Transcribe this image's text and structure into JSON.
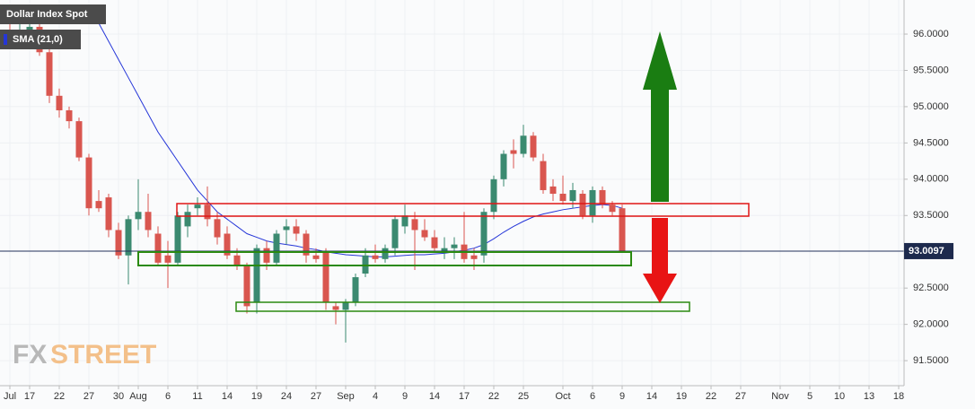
{
  "chart_data": {
    "type": "candlestick",
    "categories": [
      "Jul",
      null,
      "17",
      null,
      null,
      "22",
      null,
      null,
      "27",
      null,
      null,
      "30",
      null,
      "Aug",
      null,
      null,
      "6",
      null,
      null,
      "11",
      null,
      null,
      "14",
      null,
      null,
      "19",
      null,
      null,
      "24",
      null,
      null,
      "27",
      null,
      null,
      "Sep",
      null,
      null,
      "4",
      null,
      null,
      "9",
      null,
      null,
      "14",
      null,
      null,
      "17",
      null,
      null,
      "22",
      null,
      null,
      "25",
      null,
      null,
      null,
      "Oct",
      null,
      null,
      "6",
      null,
      null,
      "9",
      null,
      null,
      "14",
      null,
      null,
      "19",
      null,
      null,
      "22",
      null,
      null,
      "27",
      null,
      null,
      null,
      "Nov",
      null,
      null,
      "5",
      null,
      null,
      "10",
      null,
      null,
      "13",
      null,
      null,
      "18"
    ],
    "series": [
      {
        "name": "Dollar Index Spot",
        "type": "candlestick",
        "up_color": "#3b8a70",
        "down_color": "#d9564f",
        "open": [
          96.0,
          95.9,
          96.05,
          96.1,
          95.75,
          95.15,
          94.95,
          94.8,
          94.3,
          93.7,
          93.75,
          93.3,
          92.95,
          93.45,
          93.55,
          93.25,
          92.95,
          92.85,
          93.35,
          93.6,
          93.65,
          93.45,
          93.25,
          92.95,
          92.8,
          92.3,
          93.05,
          92.85,
          93.3,
          93.35,
          93.25,
          92.95,
          93.0,
          92.25,
          92.2,
          92.3,
          92.7,
          92.95,
          92.9,
          93.05,
          93.35,
          93.45,
          93.3,
          93.2,
          93.0,
          93.05,
          93.1,
          92.95,
          92.95,
          93.55,
          94.0,
          94.4,
          94.35,
          94.6,
          94.25,
          93.9,
          93.8,
          93.7,
          93.8,
          93.5,
          93.85,
          93.65,
          93.6,
          null,
          null,
          null,
          null,
          null,
          null,
          null,
          null,
          null,
          null,
          null,
          null,
          null,
          null,
          null,
          null,
          null,
          null,
          null,
          null,
          null,
          null,
          null,
          null,
          null,
          null,
          null,
          null
        ],
        "high": [
          96.3,
          96.2,
          96.4,
          96.15,
          95.85,
          95.25,
          95.0,
          94.85,
          94.35,
          93.85,
          93.8,
          93.4,
          93.5,
          94.0,
          93.8,
          93.35,
          93.15,
          93.55,
          93.65,
          93.75,
          93.9,
          93.55,
          93.35,
          93.05,
          92.85,
          93.1,
          93.15,
          93.3,
          93.45,
          93.45,
          93.3,
          93.05,
          93.05,
          92.3,
          92.35,
          92.7,
          93.05,
          93.1,
          93.1,
          93.5,
          93.65,
          93.55,
          93.45,
          93.3,
          93.2,
          93.2,
          93.55,
          93.05,
          93.6,
          94.05,
          94.4,
          94.55,
          94.75,
          94.65,
          94.35,
          94.0,
          94.05,
          93.95,
          93.85,
          93.9,
          93.9,
          93.7,
          93.65,
          null,
          null,
          null,
          null,
          null,
          null,
          null,
          null,
          null,
          null,
          null,
          null,
          null,
          null,
          null,
          null,
          null,
          null,
          null,
          null,
          null,
          null,
          null,
          null,
          null,
          null,
          null,
          null
        ],
        "low": [
          95.8,
          95.85,
          95.9,
          95.7,
          95.05,
          94.85,
          94.7,
          94.25,
          93.5,
          93.55,
          93.2,
          92.9,
          92.55,
          93.3,
          93.2,
          92.8,
          92.5,
          92.8,
          93.2,
          93.5,
          93.35,
          93.1,
          92.9,
          92.75,
          92.15,
          92.15,
          92.75,
          92.8,
          93.1,
          93.15,
          92.85,
          92.85,
          92.2,
          92.0,
          91.75,
          92.25,
          92.65,
          92.85,
          92.85,
          92.95,
          93.25,
          92.75,
          93.15,
          93.0,
          92.9,
          92.9,
          92.85,
          92.75,
          92.85,
          93.45,
          93.9,
          94.15,
          94.3,
          94.25,
          93.8,
          93.7,
          93.65,
          93.6,
          93.45,
          93.4,
          93.6,
          93.5,
          93.0,
          null,
          null,
          null,
          null,
          null,
          null,
          null,
          null,
          null,
          null,
          null,
          null,
          null,
          null,
          null,
          null,
          null,
          null,
          null,
          null,
          null,
          null,
          null,
          null,
          null,
          null,
          null,
          null
        ],
        "close": [
          95.9,
          96.05,
          96.1,
          95.75,
          95.15,
          94.95,
          94.8,
          94.3,
          93.6,
          93.6,
          93.3,
          92.95,
          93.45,
          93.55,
          93.3,
          92.85,
          92.85,
          93.5,
          93.55,
          93.65,
          93.45,
          93.2,
          92.95,
          92.8,
          92.25,
          93.05,
          92.85,
          93.25,
          93.35,
          93.25,
          92.95,
          92.9,
          92.3,
          92.2,
          92.3,
          92.65,
          92.95,
          92.9,
          93.05,
          93.45,
          93.5,
          93.3,
          93.2,
          93.05,
          93.05,
          93.1,
          92.9,
          92.9,
          93.55,
          94.0,
          94.35,
          94.35,
          94.6,
          94.3,
          93.85,
          93.8,
          93.7,
          93.85,
          93.5,
          93.85,
          93.65,
          93.55,
          93.0097,
          null,
          null,
          null,
          null,
          null,
          null,
          null,
          null,
          null,
          null,
          null,
          null,
          null,
          null,
          null,
          null,
          null,
          null,
          null,
          null,
          null,
          null,
          null,
          null,
          null,
          null,
          null,
          null
        ]
      },
      {
        "name": "SMA (21,0)",
        "type": "line",
        "color": "#2536d8",
        "values": [
          null,
          null,
          null,
          null,
          null,
          null,
          null,
          null,
          96.4,
          96.15,
          95.9,
          95.65,
          95.4,
          95.15,
          94.9,
          94.65,
          94.45,
          94.25,
          94.05,
          93.85,
          93.7,
          93.55,
          93.45,
          93.35,
          93.25,
          93.2,
          93.15,
          93.12,
          93.1,
          93.08,
          93.05,
          93.03,
          93.0,
          92.98,
          92.96,
          92.95,
          92.94,
          92.93,
          92.93,
          92.94,
          92.95,
          92.96,
          92.96,
          92.97,
          92.98,
          93.0,
          93.02,
          93.05,
          93.1,
          93.18,
          93.27,
          93.35,
          93.42,
          93.48,
          93.52,
          93.55,
          93.58,
          93.6,
          93.62,
          93.64,
          93.65,
          93.64,
          93.6,
          null,
          null,
          null,
          null,
          null,
          null,
          null,
          null,
          null,
          null,
          null,
          null,
          null,
          null,
          null,
          null,
          null,
          null,
          null,
          null,
          null,
          null,
          null,
          null,
          null,
          null,
          null,
          null
        ]
      }
    ],
    "ylim": [
      91.155,
      96.47
    ],
    "yticks": [
      {
        "value": 96,
        "label": "96.0000"
      },
      {
        "value": 95.5,
        "label": "95.5000"
      },
      {
        "value": 95,
        "label": "95.0000"
      },
      {
        "value": 94.5,
        "label": "94.5000"
      },
      {
        "value": 94,
        "label": "94.0000"
      },
      {
        "value": 93.5,
        "label": "93.5000"
      },
      {
        "value": 92.5,
        "label": "92.5000"
      },
      {
        "value": 92,
        "label": "92.0000"
      },
      {
        "value": 91.5,
        "label": "91.5000"
      }
    ],
    "grid": true,
    "watermark": [
      "FX",
      "STREET"
    ]
  }
}
